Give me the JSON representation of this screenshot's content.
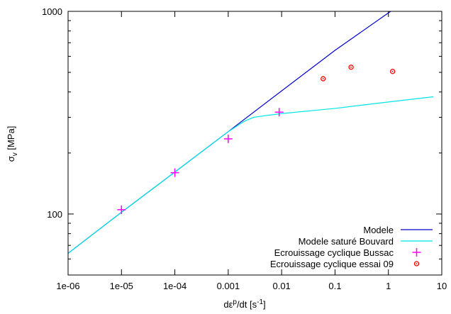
{
  "chart_data": {
    "type": "line",
    "xscale": "log",
    "yscale": "log",
    "xlim": [
      1e-06,
      10
    ],
    "ylim": [
      50,
      1000
    ],
    "xlabel": "dε",
    "xlabel_sup": "p",
    "xlabel_rest": "/dt [s",
    "xlabel_unit_sup": "-1",
    "xlabel_end": "]",
    "ylabel": "σ",
    "ylabel_sub": "v",
    "ylabel_rest": " [MPa]",
    "xticks": [
      {
        "value": 1e-06,
        "label": "1e-06"
      },
      {
        "value": 1e-05,
        "label": "1e-05"
      },
      {
        "value": 0.0001,
        "label": "1e-04"
      },
      {
        "value": 0.001,
        "label": "0.001"
      },
      {
        "value": 0.01,
        "label": "0.01"
      },
      {
        "value": 0.1,
        "label": "0.1"
      },
      {
        "value": 1,
        "label": "1"
      },
      {
        "value": 10,
        "label": "10"
      }
    ],
    "yticks": [
      {
        "value": 100,
        "label": "100"
      },
      {
        "value": 1000,
        "label": "1000"
      }
    ],
    "grid": false,
    "legend_position": "bottom-right",
    "series": [
      {
        "name": "Modele",
        "kind": "line",
        "color": "#0000cc",
        "x": [
          1e-06,
          1e-05,
          0.0001,
          0.001,
          0.01,
          0.1,
          1.1
        ],
        "y": [
          64,
          102,
          161,
          255,
          405,
          642,
          1000
        ]
      },
      {
        "name": "Modele saturé Bouvard",
        "kind": "line",
        "color": "#00e5e5",
        "x": [
          1e-06,
          1e-05,
          0.0001,
          0.001,
          0.002,
          0.003,
          0.005,
          0.01,
          0.1,
          1,
          7
        ],
        "y": [
          64,
          102,
          161,
          255,
          287,
          300,
          306,
          313,
          332,
          357,
          379
        ]
      },
      {
        "name": "Ecrouissage cyclique Bussac",
        "kind": "points",
        "marker": "plus",
        "color": "#ff00ff",
        "x": [
          1e-05,
          0.0001,
          0.001,
          0.009
        ],
        "y": [
          105,
          160,
          235,
          318
        ]
      },
      {
        "name": "Ecrouissage cyclique essai 09",
        "kind": "points",
        "marker": "circle",
        "color": "#ff0000",
        "x": [
          0.06,
          0.2,
          1.2
        ],
        "y": [
          465,
          530,
          505
        ]
      }
    ]
  }
}
